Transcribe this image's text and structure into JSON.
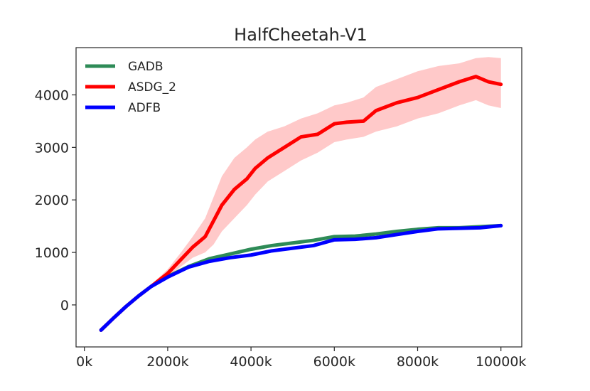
{
  "chart_data": {
    "type": "line",
    "title": "HalfCheetah-V1",
    "xlabel": "",
    "ylabel": "",
    "xlim": [
      -200,
      10500
    ],
    "ylim": [
      -800,
      4900
    ],
    "x_ticks": [
      0,
      2000,
      4000,
      6000,
      8000,
      10000
    ],
    "x_tick_labels": [
      "0k",
      "2000k",
      "4000k",
      "6000k",
      "8000k",
      "10000k"
    ],
    "y_ticks": [
      0,
      1000,
      2000,
      3000,
      4000
    ],
    "y_tick_labels": [
      "0",
      "1000",
      "2000",
      "3000",
      "4000"
    ],
    "grid": false,
    "legend_position": "top-left",
    "series": [
      {
        "name": "GADB",
        "color": "#2e8b57",
        "x": [
          400,
          700,
          1000,
          1300,
          1600,
          2000,
          2500,
          3000,
          3500,
          4000,
          4500,
          5000,
          5500,
          6000,
          6500,
          7000,
          7500,
          8000,
          8500,
          9000,
          9500,
          10000
        ],
        "values": [
          -480,
          -250,
          -30,
          170,
          350,
          540,
          730,
          880,
          970,
          1060,
          1130,
          1180,
          1230,
          1300,
          1310,
          1350,
          1400,
          1440,
          1470,
          1470,
          1490,
          1510
        ]
      },
      {
        "name": "ASDG_2",
        "color": "#ff0000",
        "band_color": "#ffc9c9",
        "x": [
          400,
          700,
          1000,
          1300,
          1600,
          2000,
          2300,
          2600,
          2900,
          3100,
          3300,
          3600,
          3900,
          4100,
          4400,
          4800,
          5200,
          5600,
          6000,
          6300,
          6700,
          7000,
          7500,
          8000,
          8500,
          9000,
          9400,
          9700,
          10000
        ],
        "values": [
          -480,
          -250,
          -30,
          170,
          350,
          600,
          850,
          1100,
          1300,
          1600,
          1900,
          2200,
          2400,
          2600,
          2800,
          3000,
          3200,
          3250,
          3450,
          3480,
          3500,
          3700,
          3850,
          3950,
          4100,
          4250,
          4350,
          4250,
          4200
        ],
        "upper": [
          -470,
          -240,
          -20,
          190,
          380,
          680,
          980,
          1300,
          1650,
          2050,
          2450,
          2800,
          3000,
          3150,
          3300,
          3400,
          3550,
          3650,
          3800,
          3850,
          3950,
          4150,
          4300,
          4450,
          4550,
          4600,
          4700,
          4720,
          4700
        ],
        "lower": [
          -490,
          -260,
          -40,
          150,
          320,
          530,
          720,
          900,
          1000,
          1150,
          1400,
          1650,
          1900,
          2100,
          2350,
          2550,
          2750,
          2900,
          3100,
          3150,
          3200,
          3300,
          3400,
          3550,
          3650,
          3800,
          3900,
          3800,
          3750
        ]
      },
      {
        "name": "ADFB",
        "color": "#0000ff",
        "x": [
          400,
          700,
          1000,
          1300,
          1600,
          2000,
          2500,
          3000,
          3500,
          4000,
          4500,
          5000,
          5500,
          6000,
          6500,
          7000,
          7500,
          8000,
          8500,
          9000,
          9500,
          10000
        ],
        "values": [
          -480,
          -250,
          -30,
          170,
          350,
          530,
          720,
          830,
          900,
          950,
          1030,
          1080,
          1130,
          1240,
          1250,
          1280,
          1340,
          1400,
          1450,
          1460,
          1470,
          1510
        ]
      }
    ]
  }
}
